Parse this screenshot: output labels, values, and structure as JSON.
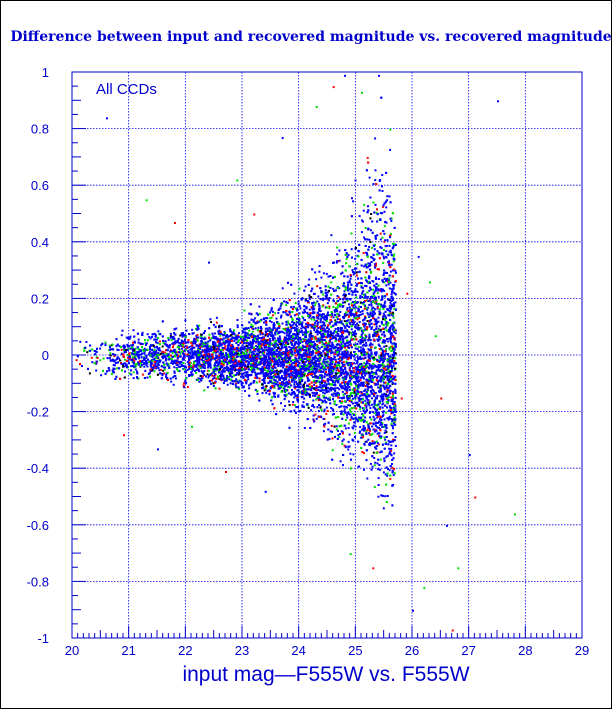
{
  "chart_data": {
    "type": "scatter",
    "title": "Difference between input and recovered magnitude vs. recovered magnitude",
    "xlabel": "input mag—F555W vs. F555W",
    "ylabel": "",
    "annotation": "All CCDs",
    "xlim": [
      20,
      29
    ],
    "ylim": [
      -1,
      1
    ],
    "x_ticks": [
      "20",
      "21",
      "22",
      "23",
      "24",
      "25",
      "26",
      "27",
      "28",
      "29"
    ],
    "y_ticks": [
      "1",
      "0.8",
      "0.6",
      "0.4",
      "0.2",
      "0",
      "-0.2",
      "-0.4",
      "-0.6",
      "-0.8",
      "-1"
    ],
    "grid": true,
    "legend": "none",
    "series_colors": [
      "#0000ff",
      "#00e000",
      "#ff0000",
      "#000000"
    ],
    "envelope": {
      "x": [
        20.0,
        21.0,
        22.0,
        23.0,
        23.5,
        24.0,
        24.5,
        25.0,
        25.3,
        25.5,
        25.7
      ],
      "y_lower": [
        -0.06,
        -0.08,
        -0.1,
        -0.12,
        -0.15,
        -0.19,
        -0.25,
        -0.35,
        -0.4,
        -0.5,
        -0.5
      ],
      "y_upper": [
        0.06,
        0.08,
        0.1,
        0.13,
        0.17,
        0.22,
        0.3,
        0.45,
        0.6,
        0.7,
        0.4
      ]
    },
    "sparse_points": {
      "x": [
        20.6,
        21.3,
        21.8,
        22.4,
        22.9,
        23.2,
        23.7,
        24.3,
        24.6,
        24.8,
        25.1,
        25.2,
        25.4,
        25.6,
        25.9,
        26.1,
        26.3,
        26.5,
        26.6,
        26.8,
        27.1,
        27.5,
        27.8,
        20.9,
        21.5,
        22.1,
        22.7,
        23.4,
        24.9,
        25.3,
        26.0,
        26.2,
        26.7,
        27.0,
        26.4,
        25.8
      ],
      "y": [
        0.84,
        0.55,
        0.47,
        0.33,
        0.62,
        0.5,
        0.77,
        0.88,
        0.95,
        0.99,
        0.93,
        0.7,
        0.99,
        0.8,
        0.22,
        0.35,
        0.26,
        -0.15,
        -0.6,
        -0.75,
        -0.5,
        0.9,
        -0.56,
        -0.28,
        -0.33,
        -0.25,
        -0.41,
        -0.48,
        -0.7,
        -0.75,
        -0.9,
        -0.82,
        -0.97,
        -0.35,
        0.07,
        -0.15
      ]
    }
  }
}
